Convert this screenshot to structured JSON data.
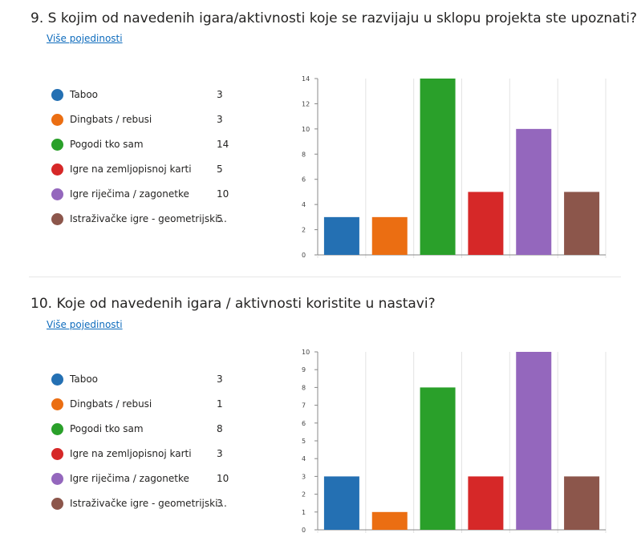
{
  "details_link": "Više pojedinosti",
  "colors": [
    "#2470b3",
    "#eb6e12",
    "#2aa02a",
    "#d62828",
    "#9467bd",
    "#8c564b"
  ],
  "questions": [
    {
      "title": "9.  S kojim od navedenih igara/aktivnosti koje se razvijaju u sklopu projekta ste upoznati?",
      "legend": [
        {
          "label": "Taboo",
          "count": "3"
        },
        {
          "label": "Dingbats / rebusi",
          "count": "3"
        },
        {
          "label": "Pogodi tko sam",
          "count": "14"
        },
        {
          "label": "Igre na zemljopisnoj karti",
          "count": "5"
        },
        {
          "label": "Igre riječima / zagonetke",
          "count": "10"
        },
        {
          "label": "Istraživačke igre - geometrijski...",
          "count": "5"
        }
      ]
    },
    {
      "title": "10.  Koje od navedenih igara / aktivnosti koristite u nastavi?",
      "legend": [
        {
          "label": "Taboo",
          "count": "3"
        },
        {
          "label": "Dingbats / rebusi",
          "count": "1"
        },
        {
          "label": "Pogodi tko sam",
          "count": "8"
        },
        {
          "label": "Igre na zemljopisnoj karti",
          "count": "3"
        },
        {
          "label": "Igre riječima / zagonetke",
          "count": "10"
        },
        {
          "label": "Istraživačke igre - geometrijski...",
          "count": "3"
        }
      ]
    }
  ],
  "chart_data": [
    {
      "type": "bar",
      "categories": [
        "Taboo",
        "Dingbats / rebusi",
        "Pogodi tko sam",
        "Igre na zemljopisnoj karti",
        "Igre riječima / zagonetke",
        "Istraživačke igre - geometrijski..."
      ],
      "values": [
        3,
        3,
        14,
        5,
        10,
        5
      ],
      "ylim": [
        0,
        14
      ],
      "yticks": [
        "0",
        "2",
        "4",
        "6",
        "8",
        "10",
        "12",
        "14"
      ],
      "grid": true,
      "legend": "left"
    },
    {
      "type": "bar",
      "categories": [
        "Taboo",
        "Dingbats / rebusi",
        "Pogodi tko sam",
        "Igre na zemljopisnoj karti",
        "Igre riječima / zagonetke",
        "Istraživačke igre - geometrijski..."
      ],
      "values": [
        3,
        1,
        8,
        3,
        10,
        3
      ],
      "ylim": [
        0,
        10
      ],
      "yticks": [
        "0",
        "1",
        "2",
        "3",
        "4",
        "5",
        "6",
        "7",
        "8",
        "9",
        "10"
      ],
      "grid": true,
      "legend": "left"
    }
  ]
}
